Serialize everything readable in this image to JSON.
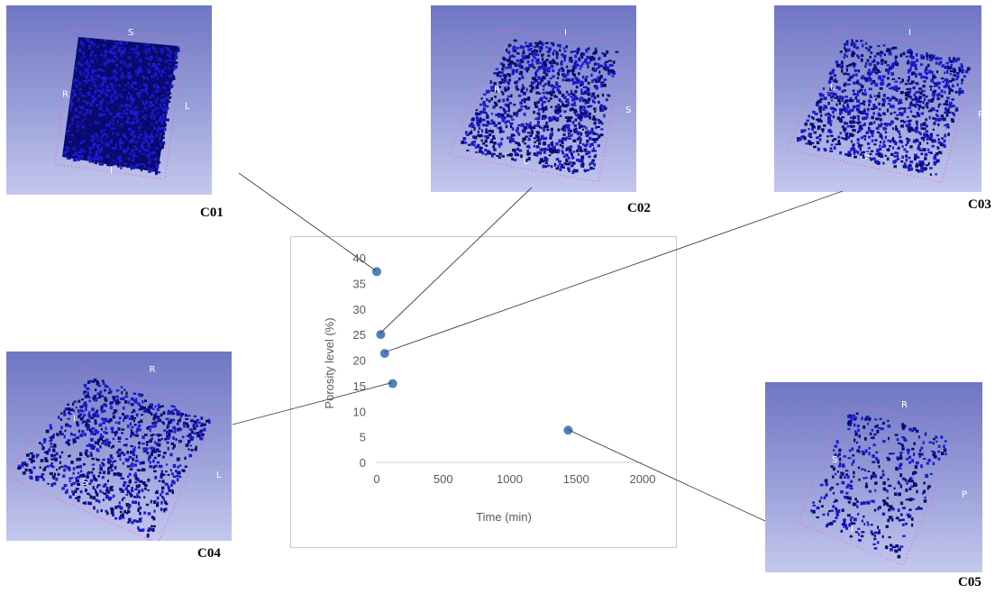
{
  "panels": [
    {
      "id": "C01",
      "label": "C01",
      "orientation": [
        "S",
        "R",
        "L",
        "I"
      ]
    },
    {
      "id": "C02",
      "label": "C02",
      "orientation": [
        "I",
        "R",
        "S",
        "L"
      ]
    },
    {
      "id": "C03",
      "label": "C03",
      "orientation": [
        "I",
        "L",
        "R",
        "S"
      ]
    },
    {
      "id": "C04",
      "label": "C04",
      "orientation": [
        "R",
        "I",
        "L",
        "S"
      ]
    },
    {
      "id": "C05",
      "label": "C05",
      "orientation": [
        "R",
        "S",
        "P",
        "I"
      ]
    }
  ],
  "colors": {
    "marker": "#4f81bd",
    "voxel_dark": "#0a0a6e",
    "voxel": "#1a1ad0",
    "bbox": "#ff4fd8"
  },
  "chart_data": {
    "type": "scatter",
    "title": "",
    "xlabel": "Time (min)",
    "ylabel": "Porosity level (%)",
    "xlim": [
      0,
      2000
    ],
    "ylim": [
      0,
      40
    ],
    "xticks": [
      "0",
      "500",
      "1000",
      "1500",
      "2000"
    ],
    "yticks": [
      "0",
      "5",
      "10",
      "15",
      "20",
      "25",
      "30",
      "35",
      "40"
    ],
    "grid": false,
    "series": [
      {
        "points": [
          {
            "x": 0,
            "y": 37.3,
            "label": "C01"
          },
          {
            "x": 30,
            "y": 25.0,
            "label": "C02"
          },
          {
            "x": 60,
            "y": 21.3,
            "label": "C03"
          },
          {
            "x": 120,
            "y": 15.4,
            "label": "C04"
          },
          {
            "x": 1440,
            "y": 6.3,
            "label": "C05"
          }
        ]
      }
    ]
  }
}
